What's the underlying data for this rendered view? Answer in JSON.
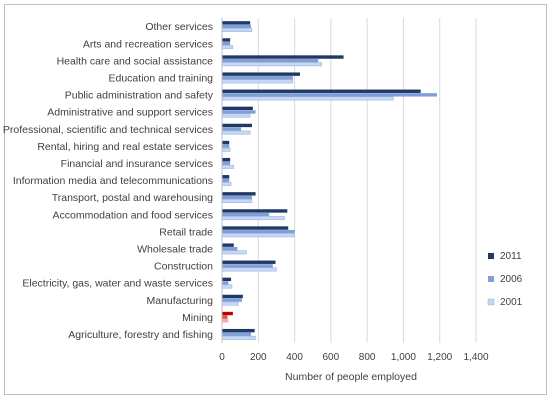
{
  "chart_data": {
    "type": "bar",
    "orientation": "horizontal",
    "title": "",
    "xlabel": "Number of people employed",
    "ylabel": "",
    "xlim": [
      0,
      1400
    ],
    "xticks": [
      0,
      200,
      400,
      600,
      800,
      1000,
      1200,
      1400
    ],
    "xtick_labels": [
      "0",
      "200",
      "400",
      "600",
      "800",
      "1,000",
      "1,200",
      "1,400"
    ],
    "grid": true,
    "legend_position": "right",
    "categories": [
      "Other services",
      "Arts and recreation services",
      "Health care and social assistance",
      "Education and training",
      "Public administration and safety",
      "Administrative and support services",
      "Professional, scientific and technical services",
      "Rental, hiring and real estate services",
      "Financial and insurance services",
      "Information media and telecommunications",
      "Transport, postal and warehousing",
      "Accommodation and food services",
      "Retail trade",
      "Wholesale trade",
      "Construction",
      "Electricity, gas, water and waste services",
      "Manufacturing",
      "Mining",
      "Agriculture, forestry and fishing"
    ],
    "series": [
      {
        "name": "2011",
        "color": "#1f3864",
        "values": [
          155,
          45,
          670,
          430,
          1095,
          170,
          165,
          40,
          45,
          40,
          185,
          360,
          365,
          65,
          295,
          50,
          115,
          60,
          180
        ]
      },
      {
        "name": "2006",
        "color": "#7f9fd6",
        "values": [
          160,
          45,
          530,
          390,
          1185,
          185,
          105,
          40,
          45,
          40,
          165,
          260,
          400,
          85,
          280,
          35,
          110,
          30,
          160
        ]
      },
      {
        "name": "2001",
        "color": "#c5d7f2",
        "values": [
          165,
          60,
          550,
          390,
          945,
          155,
          155,
          45,
          65,
          50,
          165,
          345,
          400,
          135,
          300,
          55,
          90,
          35,
          185
        ]
      }
    ],
    "highlight": {
      "category": "Mining",
      "colors": [
        "#c00000",
        "#e05050",
        "#f4aaaa"
      ]
    }
  }
}
